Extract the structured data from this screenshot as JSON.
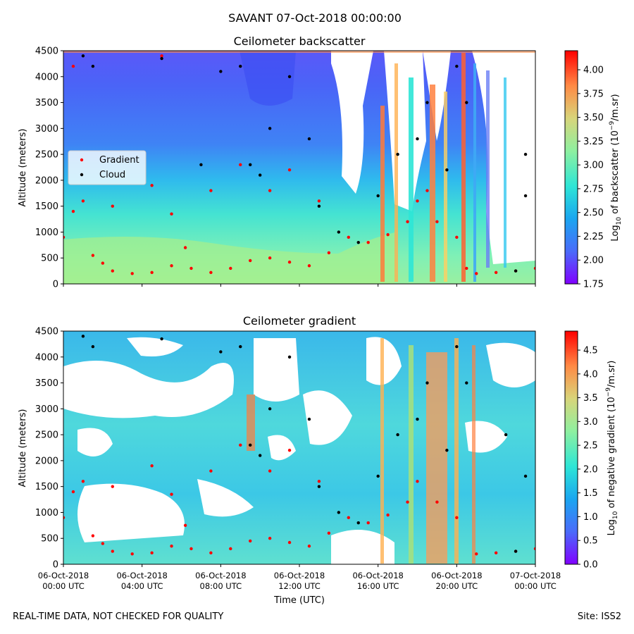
{
  "figure": {
    "suptitle": "SAVANT 07-Oct-2018 00:00:00",
    "footer_left": "REAL-TIME DATA, NOT CHECKED FOR QUALITY",
    "footer_right": "Site: ISS2"
  },
  "chart_data": [
    {
      "type": "heatmap",
      "title": "Ceilometer backscatter",
      "xlabel": "",
      "ylabel": "Altitude (meters)",
      "ylim": [
        0,
        4500
      ],
      "yticks": [
        "0",
        "500",
        "1000",
        "1500",
        "2000",
        "2500",
        "3000",
        "3500",
        "4000",
        "4500"
      ],
      "xticks": [],
      "colorbar": {
        "label_prefix": "Log",
        "label_sub": "10",
        "label_mid": " of backscatter (10",
        "label_sup": "−9",
        "label_suffix": "/m.sr)",
        "range": [
          1.75,
          4.2
        ],
        "ticks": [
          "1.75",
          "2.00",
          "2.25",
          "2.50",
          "2.75",
          "3.00",
          "3.25",
          "3.50",
          "3.75",
          "4.00"
        ],
        "colormap": "rainbow"
      },
      "legend": {
        "position": "center-left",
        "entries": [
          {
            "label": "Gradient",
            "color": "#ff0000"
          },
          {
            "label": "Cloud",
            "color": "#000000"
          }
        ]
      },
      "series": [
        {
          "name": "Gradient",
          "color": "#ff0000",
          "marker": "dot",
          "points": [
            [
              0.0,
              900
            ],
            [
              0.5,
              1400
            ],
            [
              1.5,
              550
            ],
            [
              2.0,
              400
            ],
            [
              2.5,
              250
            ],
            [
              3.5,
              200
            ],
            [
              4.5,
              220
            ],
            [
              5.5,
              350
            ],
            [
              6.2,
              700
            ],
            [
              6.5,
              300
            ],
            [
              7.5,
              220
            ],
            [
              8.5,
              300
            ],
            [
              9.5,
              450
            ],
            [
              10.5,
              500
            ],
            [
              11.5,
              420
            ],
            [
              12.5,
              350
            ],
            [
              13.5,
              600
            ],
            [
              14.5,
              900
            ],
            [
              15.5,
              800
            ],
            [
              16.5,
              950
            ],
            [
              17.5,
              1200
            ],
            [
              18.0,
              1600
            ],
            [
              18.5,
              1800
            ],
            [
              19.0,
              1200
            ],
            [
              20.0,
              900
            ],
            [
              20.5,
              300
            ],
            [
              21.0,
              200
            ],
            [
              22.0,
              220
            ],
            [
              23.0,
              250
            ],
            [
              24.0,
              300
            ],
            [
              1.0,
              1600
            ],
            [
              2.5,
              1500
            ],
            [
              4.5,
              1900
            ],
            [
              5.5,
              1350
            ],
            [
              7.5,
              1800
            ],
            [
              9.0,
              2300
            ],
            [
              10.5,
              1800
            ],
            [
              11.5,
              2200
            ],
            [
              13.0,
              1600
            ],
            [
              0.5,
              4200
            ],
            [
              5.0,
              4400
            ]
          ]
        },
        {
          "name": "Cloud",
          "color": "#000000",
          "marker": "dot",
          "points": [
            [
              1.0,
              4400
            ],
            [
              1.5,
              4200
            ],
            [
              5.0,
              4350
            ],
            [
              8.0,
              4100
            ],
            [
              9.0,
              4200
            ],
            [
              9.5,
              2300
            ],
            [
              10.0,
              2100
            ],
            [
              10.5,
              3000
            ],
            [
              11.5,
              4000
            ],
            [
              12.5,
              2800
            ],
            [
              13.0,
              1500
            ],
            [
              14.0,
              1000
            ],
            [
              15.0,
              800
            ],
            [
              16.0,
              1700
            ],
            [
              17.0,
              2500
            ],
            [
              18.0,
              2800
            ],
            [
              18.5,
              3500
            ],
            [
              19.5,
              2200
            ],
            [
              20.0,
              4200
            ],
            [
              20.5,
              3500
            ],
            [
              23.5,
              2500
            ],
            [
              23.5,
              1700
            ],
            [
              23.0,
              250
            ],
            [
              7.0,
              2300
            ]
          ]
        }
      ]
    },
    {
      "type": "heatmap",
      "title": "Ceilometer gradient",
      "xlabel": "Time (UTC)",
      "ylabel": "Altitude (meters)",
      "ylim": [
        0,
        4500
      ],
      "yticks": [
        "0",
        "500",
        "1000",
        "1500",
        "2000",
        "2500",
        "3000",
        "3500",
        "4000",
        "4500"
      ],
      "xticks": [
        [
          "06-Oct-2018",
          "00:00 UTC"
        ],
        [
          "06-Oct-2018",
          "04:00 UTC"
        ],
        [
          "06-Oct-2018",
          "08:00 UTC"
        ],
        [
          "06-Oct-2018",
          "12:00 UTC"
        ],
        [
          "06-Oct-2018",
          "16:00 UTC"
        ],
        [
          "06-Oct-2018",
          "20:00 UTC"
        ],
        [
          "07-Oct-2018",
          "00:00 UTC"
        ]
      ],
      "colorbar": {
        "label_prefix": "Log",
        "label_sub": "10",
        "label_mid": " of negative gradient (10",
        "label_sup": "−9",
        "label_suffix": "/m.sr)",
        "range": [
          0.0,
          4.9
        ],
        "ticks": [
          "0.0",
          "0.5",
          "1.0",
          "1.5",
          "2.0",
          "2.5",
          "3.0",
          "3.5",
          "4.0",
          "4.5"
        ],
        "colormap": "rainbow"
      },
      "series": [
        {
          "name": "Gradient",
          "color": "#ff0000",
          "marker": "dot",
          "points": [
            [
              0.0,
              900
            ],
            [
              0.5,
              1400
            ],
            [
              1.5,
              550
            ],
            [
              2.0,
              400
            ],
            [
              2.5,
              250
            ],
            [
              3.5,
              200
            ],
            [
              4.5,
              220
            ],
            [
              5.5,
              350
            ],
            [
              6.2,
              750
            ],
            [
              6.5,
              300
            ],
            [
              7.5,
              220
            ],
            [
              8.5,
              300
            ],
            [
              9.5,
              450
            ],
            [
              10.5,
              500
            ],
            [
              11.5,
              420
            ],
            [
              12.5,
              350
            ],
            [
              13.5,
              600
            ],
            [
              14.5,
              900
            ],
            [
              15.5,
              800
            ],
            [
              16.5,
              950
            ],
            [
              17.5,
              1200
            ],
            [
              18.0,
              1600
            ],
            [
              19.0,
              1200
            ],
            [
              20.0,
              900
            ],
            [
              21.0,
              200
            ],
            [
              22.0,
              220
            ],
            [
              23.0,
              250
            ],
            [
              24.0,
              300
            ],
            [
              1.0,
              1600
            ],
            [
              2.5,
              1500
            ],
            [
              4.5,
              1900
            ],
            [
              5.5,
              1350
            ],
            [
              7.5,
              1800
            ],
            [
              9.0,
              2300
            ],
            [
              10.5,
              1800
            ],
            [
              11.5,
              2200
            ],
            [
              13.0,
              1600
            ]
          ]
        },
        {
          "name": "Cloud",
          "color": "#000000",
          "marker": "dot",
          "points": [
            [
              1.0,
              4400
            ],
            [
              1.5,
              4200
            ],
            [
              5.0,
              4350
            ],
            [
              8.0,
              4100
            ],
            [
              9.0,
              4200
            ],
            [
              9.5,
              2300
            ],
            [
              10.0,
              2100
            ],
            [
              10.5,
              3000
            ],
            [
              11.5,
              4000
            ],
            [
              12.5,
              2800
            ],
            [
              13.0,
              1500
            ],
            [
              14.0,
              1000
            ],
            [
              15.0,
              800
            ],
            [
              16.0,
              1700
            ],
            [
              17.0,
              2500
            ],
            [
              18.0,
              2800
            ],
            [
              18.5,
              3500
            ],
            [
              19.5,
              2200
            ],
            [
              20.0,
              4200
            ],
            [
              20.5,
              3500
            ],
            [
              22.5,
              2500
            ],
            [
              23.5,
              1700
            ],
            [
              23.0,
              250
            ]
          ]
        }
      ]
    }
  ]
}
